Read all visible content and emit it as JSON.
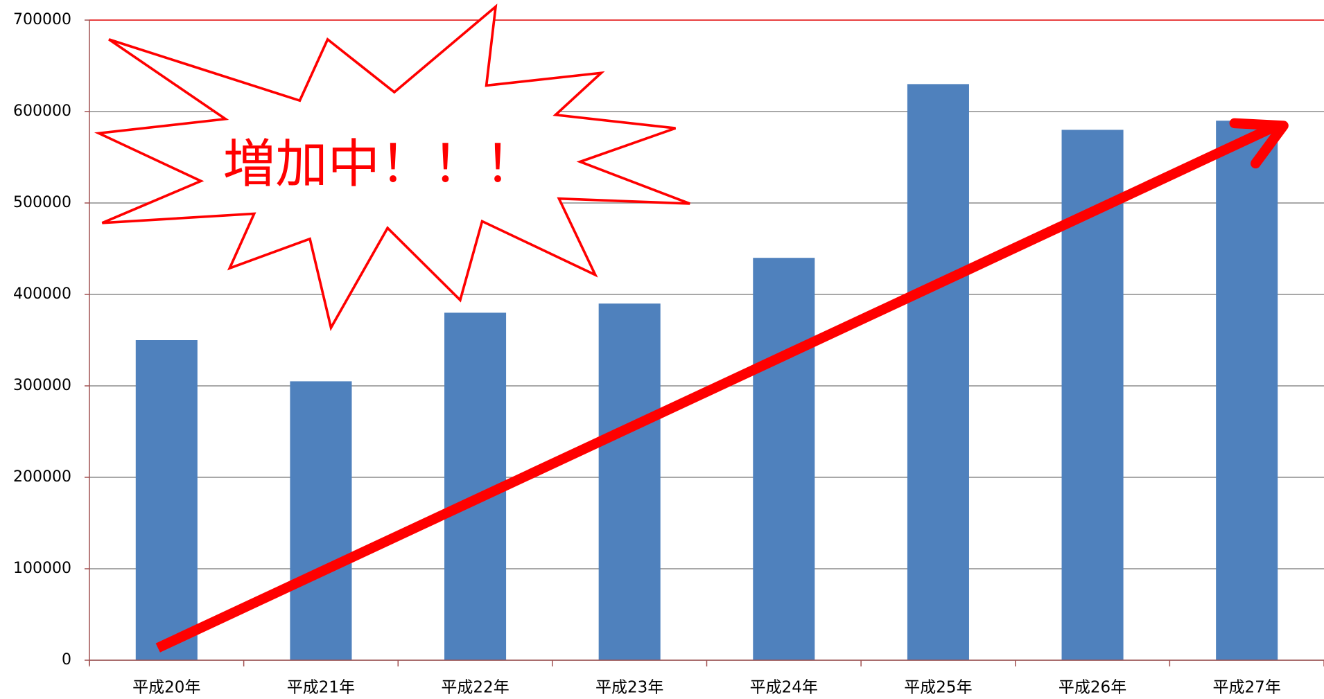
{
  "chart_data": {
    "type": "bar",
    "annotation": "増加中！！！",
    "categories": [
      "平成20年",
      "平成21年",
      "平成22年",
      "平成23年",
      "平成24年",
      "平成25年",
      "平成26年",
      "平成27年"
    ],
    "values": [
      350000,
      305000,
      380000,
      390000,
      440000,
      630000,
      580000,
      590000
    ],
    "color": "#4f81bd",
    "ylim": [
      0,
      700000
    ],
    "yticks": [
      0,
      100000,
      200000,
      300000,
      400000,
      500000,
      600000,
      700000
    ],
    "grid": true
  }
}
